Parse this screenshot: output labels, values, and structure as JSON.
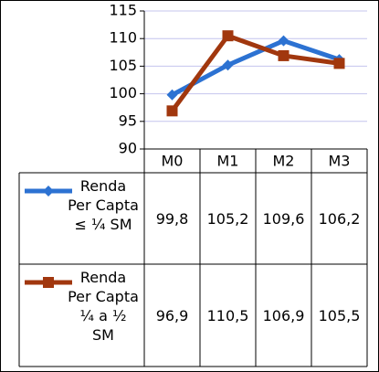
{
  "chart_data": {
    "type": "line",
    "categories": [
      "M0",
      "M1",
      "M2",
      "M3"
    ],
    "series": [
      {
        "name": "Renda Per Capta ≤ ¼ SM",
        "color": "#2c72d2",
        "marker": "diamond",
        "values": [
          99.8,
          105.2,
          109.6,
          106.2
        ],
        "value_labels": [
          "99,8",
          "105,2",
          "109,6",
          "106,2"
        ]
      },
      {
        "name": "Renda Per Capta ¼ a ½ SM",
        "color": "#a1370e",
        "marker": "square",
        "values": [
          96.9,
          110.5,
          106.9,
          105.5
        ],
        "value_labels": [
          "96,9",
          "110,5",
          "106,9",
          "105,5"
        ]
      }
    ],
    "ylim": [
      90,
      115
    ],
    "yticks": [
      90,
      95,
      100,
      105,
      110,
      115
    ],
    "grid": true
  }
}
